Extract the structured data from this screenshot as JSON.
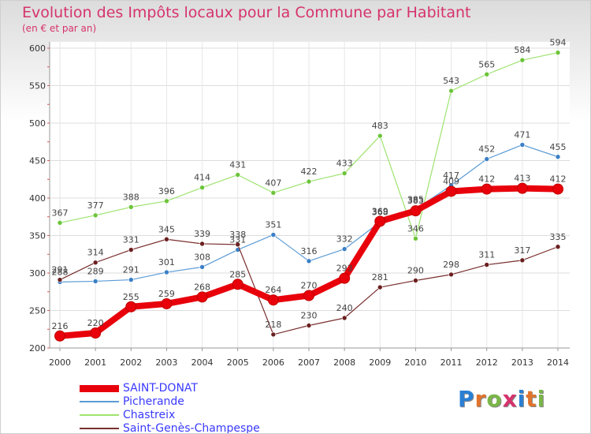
{
  "title": "Evolution des Impôts locaux pour la Commune par Habitant",
  "subtitle": "(en € et par an)",
  "logo": {
    "text": "Proxiti",
    "colors": [
      "#2a7fd4",
      "#e0742d",
      "#7ab648",
      "#d6336c",
      "#2a7fd4",
      "#e0742d",
      "#7ab648"
    ]
  },
  "chart_data": {
    "type": "line",
    "x": [
      "2000",
      "2001",
      "2002",
      "2003",
      "2004",
      "2005",
      "2006",
      "2007",
      "2008",
      "2009",
      "2010",
      "2011",
      "2012",
      "2013",
      "2014"
    ],
    "ylim": [
      200,
      600
    ],
    "yticks": [
      200,
      250,
      300,
      350,
      400,
      450,
      500,
      550,
      600
    ],
    "grid": true,
    "legend_position": "bottom-left",
    "series": [
      {
        "name": "SAINT-DONAT",
        "color": "#e8000b",
        "dot": "#e8000b",
        "width": 8,
        "values": [
          216,
          220,
          255,
          259,
          268,
          285,
          264,
          270,
          293,
          369,
          383,
          409,
          412,
          413,
          412
        ]
      },
      {
        "name": "Picherande",
        "color": "#5b9bd5",
        "dot": "#3a7fc6",
        "width": 1.2,
        "values": [
          288,
          289,
          291,
          301,
          308,
          331,
          351,
          316,
          332,
          368,
          385,
          417,
          452,
          471,
          455
        ]
      },
      {
        "name": "Chastreix",
        "color": "#9ee36f",
        "dot": "#6cc43a",
        "width": 1.2,
        "values": [
          367,
          377,
          388,
          396,
          414,
          431,
          407,
          422,
          433,
          483,
          346,
          543,
          565,
          584,
          594
        ]
      },
      {
        "name": "Saint-Genès-Champespe",
        "color": "#7a2f2f",
        "dot": "#6b1f1f",
        "width": 1.2,
        "values": [
          291,
          314,
          331,
          345,
          339,
          338,
          218,
          230,
          240,
          281,
          290,
          298,
          311,
          317,
          335
        ]
      }
    ]
  }
}
